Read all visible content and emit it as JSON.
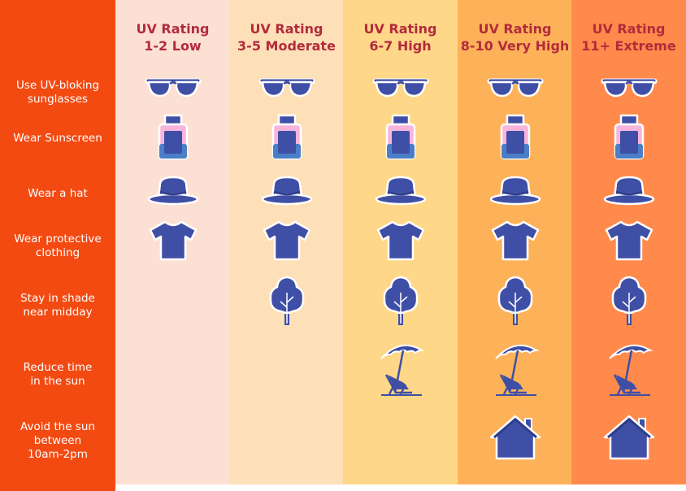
{
  "columns": [
    {
      "line1": "UV Rating",
      "line2": "1-2 Low",
      "bg": "#fde0d4",
      "level": 1
    },
    {
      "line1": "UV Rating",
      "line2": "3-5 Moderate",
      "bg": "#fde0b8",
      "level": 2
    },
    {
      "line1": "UV Rating",
      "line2": "6-7 High",
      "bg": "#fed788",
      "level": 3
    },
    {
      "line1": "UV Rating",
      "line2": "8-10 Very High",
      "bg": "#fdb25a",
      "level": 4
    },
    {
      "line1": "UV Rating",
      "line2": "11+ Extreme",
      "bg": "#ff8a4c",
      "level": 5
    }
  ],
  "rows": [
    {
      "label": "Use UV-bloking\nsunglasses",
      "icon": "sunglasses-icon",
      "min_level": 1
    },
    {
      "label": "Wear Sunscreen",
      "icon": "sunscreen-icon",
      "min_level": 1
    },
    {
      "label": "Wear a hat",
      "icon": "hat-icon",
      "min_level": 1
    },
    {
      "label": "Wear protective\nclothing",
      "icon": "tshirt-icon",
      "min_level": 1
    },
    {
      "label": "Stay in shade\nnear midday",
      "icon": "tree-icon",
      "min_level": 2
    },
    {
      "label": "Reduce time\nin the sun",
      "icon": "beach-chair-icon",
      "min_level": 3
    },
    {
      "label": "Avoid the sun\nbetween\n10am-2pm",
      "icon": "house-icon",
      "min_level": 4
    }
  ],
  "colors": {
    "sidebar": "#f34a12",
    "heading": "#b32b3c",
    "icon": "#3f4fa5",
    "icon_outline": "#ffffff"
  }
}
